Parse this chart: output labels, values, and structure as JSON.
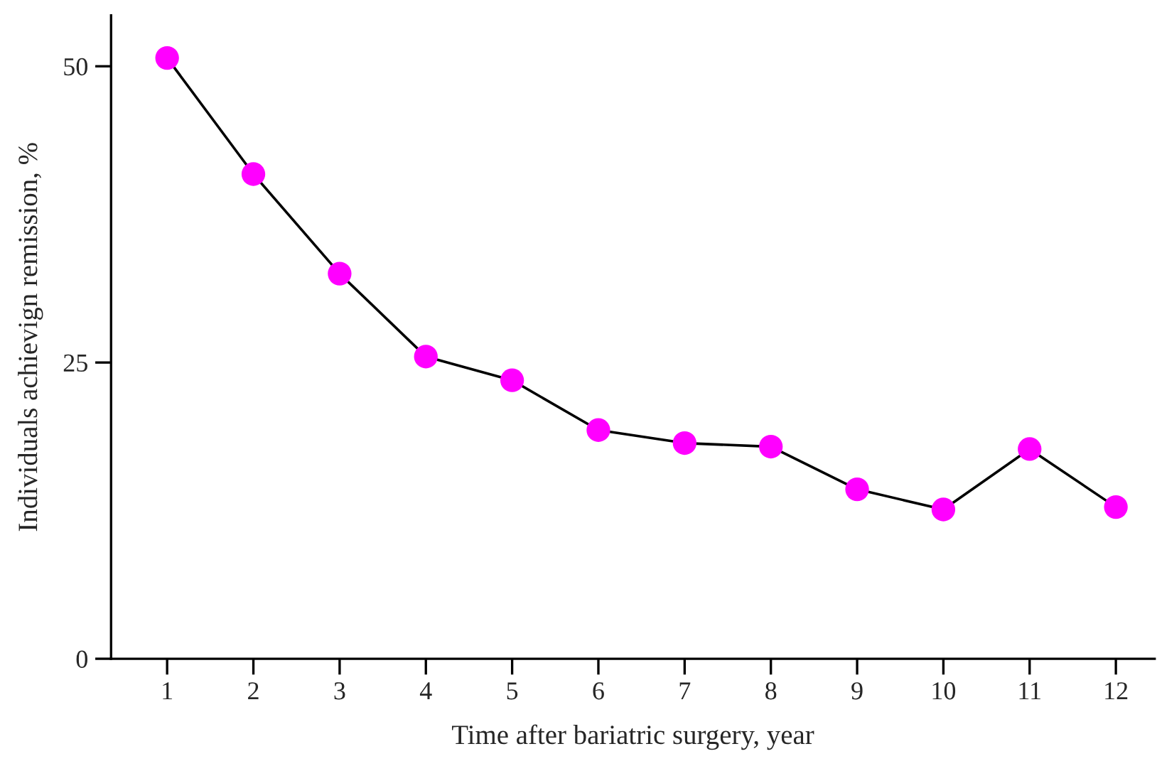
{
  "chart_data": {
    "type": "line",
    "xlabel": "Time after bariatric surgery, year",
    "ylabel": "Individuals achievign remission, %",
    "x": [
      1,
      2,
      3,
      4,
      5,
      6,
      7,
      8,
      9,
      10,
      11,
      12
    ],
    "series": [
      {
        "color": "#000000",
        "colors": [
          "#ff00ff",
          "#ff00ff",
          "#ff00ff",
          "#ff00ff",
          "#ff00ff",
          "#ff00ff",
          "#ff00ff",
          "#ff00ff",
          "#ff00ff",
          "#ff00ff",
          "#ff00ff",
          "#ff00ff"
        ],
        "values": [
          50.7,
          40.9,
          32.5,
          25.5,
          23.5,
          19.3,
          18.2,
          17.9,
          14.3,
          12.6,
          17.7,
          12.8
        ]
      }
    ],
    "xlim": [
      0.35,
      12.45
    ],
    "xticks": [
      1,
      2,
      3,
      4,
      5,
      6,
      7,
      8,
      9,
      10,
      11,
      12
    ],
    "ylim": [
      0,
      54.3
    ],
    "yticks": [
      0,
      25,
      50
    ],
    "marker": "circle",
    "line_style": "solid",
    "grid": false,
    "legend": false
  }
}
